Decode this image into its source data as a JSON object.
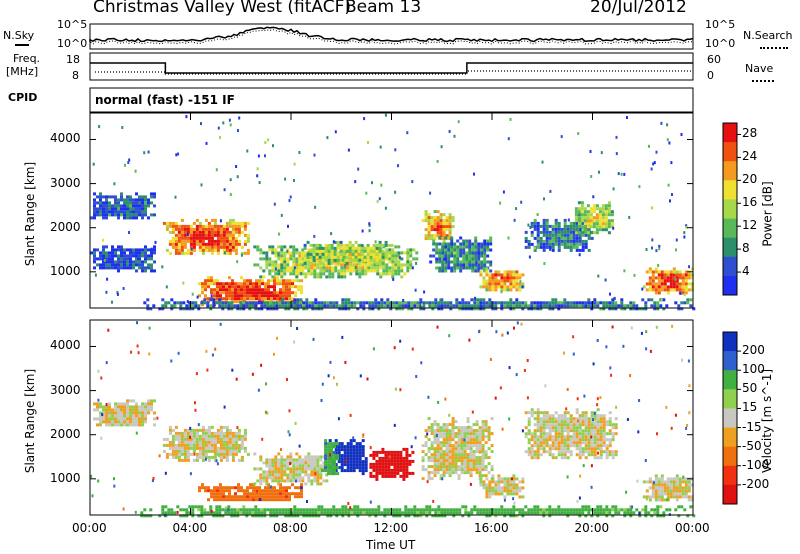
{
  "header": {
    "station": "Christmas Valley West (fitACF)",
    "beam": "Beam 13",
    "date": "20/Jul/2012"
  },
  "side_labels": {
    "nsky": "N.Sky",
    "nsearch": "N.Search",
    "freq": "Freq.",
    "freq_unit": "[MHz]",
    "nave": "Nave",
    "cpid": "CPID",
    "cpid_text": "normal (fast) -151 IF"
  },
  "noise_axis": {
    "top": "10^5",
    "bottom": "10^0"
  },
  "freq_axis": {
    "left_ticks": [
      "18",
      "8"
    ],
    "right_ticks": [
      "60",
      "0"
    ]
  },
  "colors": {
    "power": [
      "#1f2ff0",
      "#2f4fd0",
      "#2a8f6a",
      "#58b85a",
      "#a6d84a",
      "#f0e030",
      "#f59a20",
      "#f05010",
      "#e61010"
    ],
    "velocity": [
      "#1030c0",
      "#3060d0",
      "#40b040",
      "#90d050",
      "#c8c8c0",
      "#f0a020",
      "#f07010",
      "#f03010",
      "#e01010"
    ]
  },
  "chart_data": [
    {
      "type": "heatmap",
      "title": "Power",
      "xlabel": "Time UT",
      "ylabel": "Slant Range [km]",
      "x_ticks": [
        "00:00",
        "04:00",
        "08:00",
        "12:00",
        "16:00",
        "20:00",
        "00:00"
      ],
      "y_ticks": [
        1000,
        2000,
        3000,
        4000
      ],
      "xlim_hours": [
        0,
        24
      ],
      "ylim_km": [
        180,
        4600
      ],
      "colorbar": {
        "label": "Power [dB]",
        "ticks": [
          4,
          8,
          12,
          16,
          20,
          24,
          28
        ],
        "range": [
          0,
          30
        ]
      },
      "regions": [
        {
          "t": [
            0.0,
            2.6
          ],
          "r": [
            2200,
            2800
          ],
          "level": 0.15
        },
        {
          "t": [
            0.0,
            2.6
          ],
          "r": [
            1000,
            1600
          ],
          "level": 0.1
        },
        {
          "t": [
            2.9,
            6.3
          ],
          "r": [
            1400,
            2200
          ],
          "level": 0.9
        },
        {
          "t": [
            4.3,
            8.5
          ],
          "r": [
            280,
            900
          ],
          "level": 0.95
        },
        {
          "t": [
            6.5,
            13.0
          ],
          "r": [
            900,
            1600
          ],
          "level": 0.55
        },
        {
          "t": [
            8.5,
            12.0
          ],
          "r": [
            1200,
            1700
          ],
          "level": 0.5
        },
        {
          "t": [
            13.2,
            14.5
          ],
          "r": [
            1700,
            2400
          ],
          "level": 0.75
        },
        {
          "t": [
            13.5,
            16.0
          ],
          "r": [
            1000,
            1800
          ],
          "level": 0.25
        },
        {
          "t": [
            15.5,
            17.2
          ],
          "r": [
            600,
            1100
          ],
          "level": 0.8
        },
        {
          "t": [
            17.3,
            20.0
          ],
          "r": [
            1500,
            2200
          ],
          "level": 0.2
        },
        {
          "t": [
            19.3,
            20.8
          ],
          "r": [
            1900,
            2600
          ],
          "level": 0.55
        },
        {
          "t": [
            22.0,
            24.0
          ],
          "r": [
            500,
            1100
          ],
          "level": 0.9
        },
        {
          "t": [
            2.0,
            24.0
          ],
          "r": [
            180,
            400
          ],
          "level": 0.2
        }
      ]
    },
    {
      "type": "heatmap",
      "title": "Velocity",
      "xlabel": "Time UT",
      "ylabel": "Slant Range [km]",
      "x_ticks": [
        "00:00",
        "04:00",
        "08:00",
        "12:00",
        "16:00",
        "20:00",
        "00:00"
      ],
      "y_ticks": [
        1000,
        2000,
        3000,
        4000
      ],
      "xlim_hours": [
        0,
        24
      ],
      "ylim_km": [
        180,
        4600
      ],
      "colorbar": {
        "label": "Velocity [m s^-1]",
        "ticks": [
          200,
          100,
          50,
          15,
          -15,
          -50,
          -100,
          -200
        ],
        "range": [
          -250,
          250
        ]
      },
      "regions": [
        {
          "t": [
            0.0,
            2.6
          ],
          "r": [
            2200,
            2800
          ],
          "v": 0
        },
        {
          "t": [
            2.9,
            6.3
          ],
          "r": [
            1400,
            2200
          ],
          "v": 0
        },
        {
          "t": [
            4.3,
            8.5
          ],
          "r": [
            500,
            900
          ],
          "v": -60
        },
        {
          "t": [
            6.5,
            9.5
          ],
          "r": [
            900,
            1600
          ],
          "v": 0
        },
        {
          "t": [
            9.5,
            11.0
          ],
          "r": [
            1100,
            1900
          ],
          "v": 180
        },
        {
          "t": [
            9.2,
            9.8
          ],
          "r": [
            1100,
            1900
          ],
          "v": 60
        },
        {
          "t": [
            11.0,
            12.8
          ],
          "r": [
            1000,
            1700
          ],
          "v": -180
        },
        {
          "t": [
            13.2,
            16.0
          ],
          "r": [
            1000,
            2400
          ],
          "v": 0
        },
        {
          "t": [
            15.5,
            17.2
          ],
          "r": [
            600,
            1100
          ],
          "v": 0
        },
        {
          "t": [
            17.3,
            21.0
          ],
          "r": [
            1500,
            2600
          ],
          "v": 0
        },
        {
          "t": [
            22.0,
            24.0
          ],
          "r": [
            500,
            1100
          ],
          "v": 0
        },
        {
          "t": [
            2.0,
            24.0
          ],
          "r": [
            180,
            400
          ],
          "v": 50
        }
      ]
    }
  ]
}
